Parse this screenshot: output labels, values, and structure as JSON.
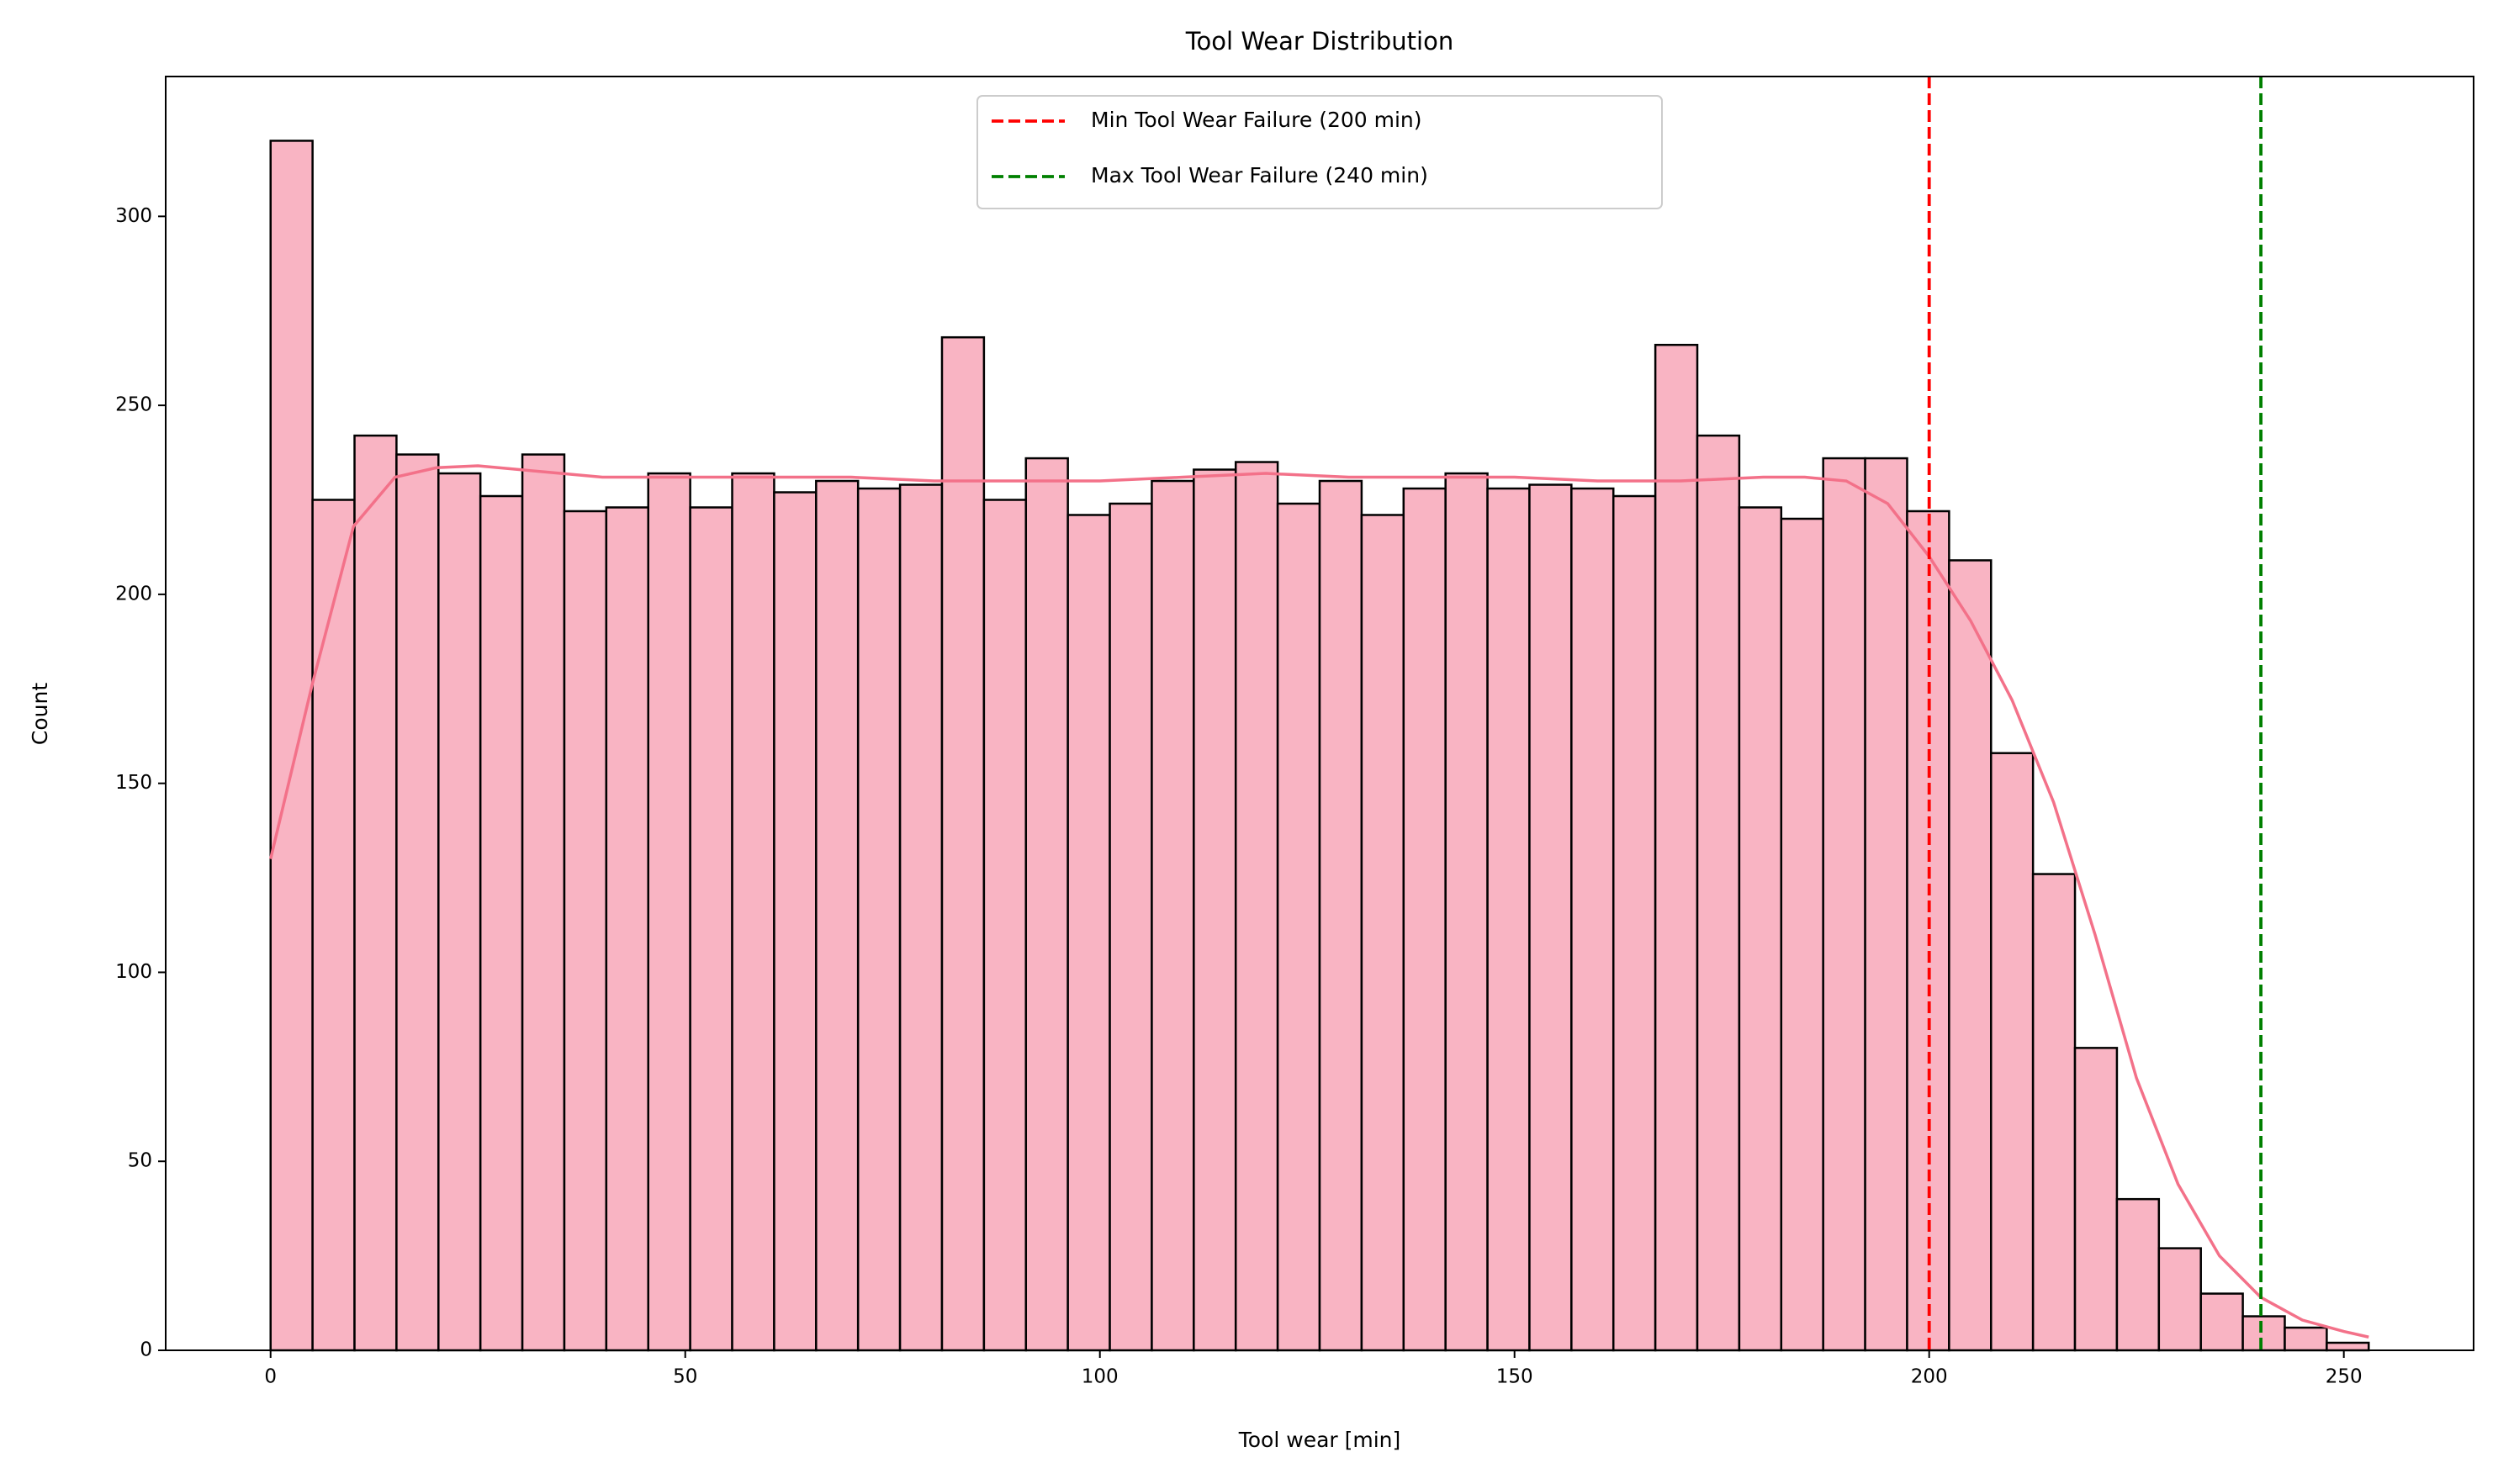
{
  "chart_data": {
    "type": "histogram",
    "title": "Tool Wear Distribution",
    "x_label": "Tool wear [min]",
    "y_label": "Count",
    "bins": [
      0,
      5.06,
      10.12,
      15.18,
      20.24,
      25.3,
      30.36,
      35.42,
      40.48,
      45.54,
      50.6,
      55.66,
      60.72,
      65.78,
      70.84,
      75.9,
      80.96,
      86.02,
      91.08,
      96.14,
      101.2,
      106.26,
      111.32,
      116.38,
      121.44,
      126.5,
      131.56,
      136.62,
      141.68,
      146.74,
      151.8,
      156.86,
      161.92,
      166.98,
      172.04,
      177.1,
      182.16,
      187.22,
      192.28,
      197.34,
      202.4,
      207.46,
      212.52,
      217.58,
      222.64,
      227.7,
      232.76,
      237.82,
      242.88,
      247.94,
      253
    ],
    "values": [
      320,
      225,
      242,
      237,
      232,
      226,
      237,
      222,
      223,
      232,
      223,
      232,
      227,
      230,
      228,
      229,
      268,
      225,
      236,
      221,
      224,
      230,
      233,
      235,
      224,
      230,
      221,
      228,
      232,
      228,
      229,
      228,
      226,
      266,
      242,
      223,
      220,
      236,
      236,
      222,
      209,
      158,
      126,
      80,
      40,
      27,
      15,
      9,
      6,
      2
    ],
    "color": "#f9b4c3",
    "edge_color": "#000000",
    "kde": {
      "color": "#f37189",
      "x": [
        0,
        5,
        10,
        15,
        20,
        25,
        30,
        40,
        50,
        60,
        70,
        80,
        90,
        100,
        110,
        120,
        130,
        140,
        150,
        160,
        170,
        180,
        185,
        190,
        195,
        200,
        205,
        210,
        215,
        220,
        225,
        230,
        235,
        240,
        245,
        250,
        253
      ],
      "values": [
        130,
        176,
        218,
        231,
        233.5,
        234,
        233,
        231,
        231,
        231,
        231,
        230,
        230,
        230,
        231,
        232,
        231,
        231,
        231,
        230,
        230,
        231,
        231,
        230,
        224,
        210,
        193,
        172,
        145,
        110,
        72,
        44,
        25,
        14,
        8,
        5,
        3.5
      ]
    },
    "reference_lines": [
      {
        "name": "Min Tool Wear Failure (200 min)",
        "x": 200,
        "color": "#ff0000"
      },
      {
        "name": "Max Tool Wear Failure (240 min)",
        "x": 240,
        "color": "#008000"
      }
    ],
    "legend": "upper center",
    "xlim": [
      -12.65,
      265.65
    ],
    "xticks": [
      0,
      50,
      100,
      150,
      200,
      250
    ],
    "ylim": [
      0,
      337
    ],
    "yticks": [
      0,
      50,
      100,
      150,
      200,
      250,
      300
    ]
  }
}
